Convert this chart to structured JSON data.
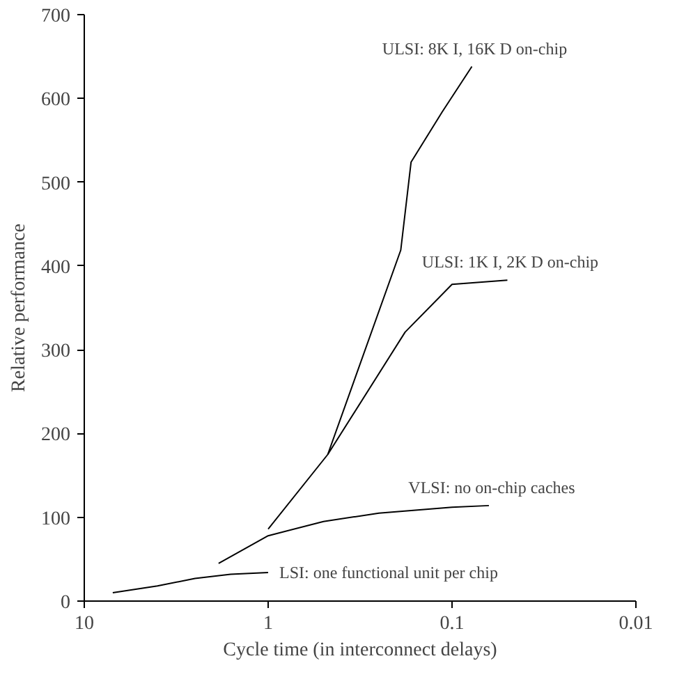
{
  "chart_data": {
    "type": "line",
    "xlabel": "Cycle time (in interconnect delays)",
    "ylabel": "Relative performance",
    "log": "x",
    "xlim": [
      10,
      0.01
    ],
    "xticks": [
      10,
      1,
      0.1,
      0.01
    ],
    "ylim": [
      0,
      700
    ],
    "yticks": [
      0,
      100,
      200,
      300,
      400,
      500,
      600,
      700
    ],
    "grid": false,
    "marker": "none",
    "line_style": "solid",
    "series": [
      {
        "name": "LSI: one functional unit per chip",
        "color": "#000000",
        "x": [
          7.0,
          4.0,
          2.5,
          1.6,
          1.0
        ],
        "values": [
          10,
          18,
          27,
          32,
          34
        ]
      },
      {
        "name": "VLSI: no on-chip caches",
        "color": "#000000",
        "x": [
          1.86,
          1.0,
          0.5,
          0.25,
          0.1,
          0.063
        ],
        "values": [
          45,
          78,
          95,
          105,
          112,
          114
        ]
      },
      {
        "name": "ULSI: 1K I, 2K D on-chip",
        "color": "#000000",
        "x": [
          1.0,
          0.474,
          0.18,
          0.1,
          0.05
        ],
        "values": [
          86,
          175,
          321,
          378,
          383
        ]
      },
      {
        "name": "ULSI: 8K I, 16K D on-chip",
        "color": "#000000",
        "x": [
          0.474,
          0.19,
          0.167,
          0.113,
          0.078
        ],
        "values": [
          175,
          419,
          524,
          584,
          638
        ]
      }
    ]
  }
}
